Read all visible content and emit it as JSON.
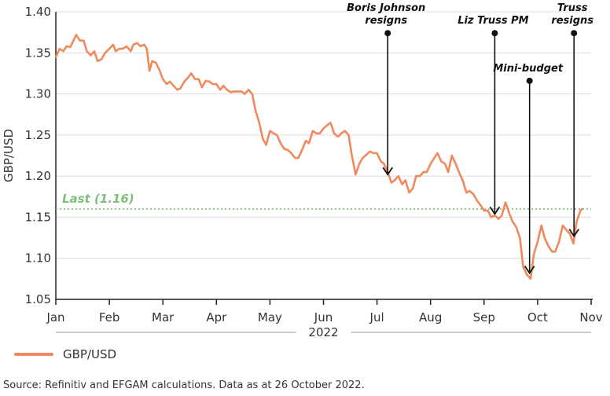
{
  "chart_data": {
    "type": "line",
    "ylabel": "GBP/USD",
    "xlabel": "2022",
    "ylim": [
      1.05,
      1.4
    ],
    "yticks": [
      "1.40",
      "1.35",
      "1.30",
      "1.25",
      "1.20",
      "1.15",
      "1.10",
      "1.05"
    ],
    "ytick_values": [
      1.4,
      1.35,
      1.3,
      1.25,
      1.2,
      1.15,
      1.1,
      1.05
    ],
    "months": [
      "Jan",
      "Feb",
      "Mar",
      "Apr",
      "May",
      "Jun",
      "Jul",
      "Aug",
      "Sep",
      "Oct",
      "Nov"
    ],
    "year_label": "2022",
    "series": [
      {
        "name": "GBP/USD",
        "color": "#f08a5d",
        "points": [
          [
            0.0,
            1.345
          ],
          [
            0.07,
            1.355
          ],
          [
            0.14,
            1.352
          ],
          [
            0.2,
            1.358
          ],
          [
            0.27,
            1.357
          ],
          [
            0.33,
            1.365
          ],
          [
            0.38,
            1.372
          ],
          [
            0.45,
            1.365
          ],
          [
            0.52,
            1.365
          ],
          [
            0.58,
            1.352
          ],
          [
            0.65,
            1.347
          ],
          [
            0.72,
            1.352
          ],
          [
            0.78,
            1.34
          ],
          [
            0.85,
            1.342
          ],
          [
            0.92,
            1.35
          ],
          [
            1.0,
            1.355
          ],
          [
            1.07,
            1.36
          ],
          [
            1.12,
            1.352
          ],
          [
            1.18,
            1.355
          ],
          [
            1.25,
            1.355
          ],
          [
            1.32,
            1.358
          ],
          [
            1.4,
            1.352
          ],
          [
            1.45,
            1.36
          ],
          [
            1.52,
            1.362
          ],
          [
            1.58,
            1.358
          ],
          [
            1.65,
            1.36
          ],
          [
            1.7,
            1.355
          ],
          [
            1.75,
            1.328
          ],
          [
            1.8,
            1.34
          ],
          [
            1.87,
            1.338
          ],
          [
            1.93,
            1.33
          ],
          [
            2.0,
            1.318
          ],
          [
            2.07,
            1.312
          ],
          [
            2.13,
            1.315
          ],
          [
            2.2,
            1.31
          ],
          [
            2.27,
            1.305
          ],
          [
            2.33,
            1.307
          ],
          [
            2.4,
            1.315
          ],
          [
            2.47,
            1.32
          ],
          [
            2.53,
            1.325
          ],
          [
            2.6,
            1.318
          ],
          [
            2.67,
            1.318
          ],
          [
            2.73,
            1.308
          ],
          [
            2.8,
            1.316
          ],
          [
            2.87,
            1.315
          ],
          [
            2.93,
            1.312
          ],
          [
            3.0,
            1.312
          ],
          [
            3.07,
            1.305
          ],
          [
            3.13,
            1.31
          ],
          [
            3.2,
            1.305
          ],
          [
            3.27,
            1.302
          ],
          [
            3.33,
            1.303
          ],
          [
            3.4,
            1.303
          ],
          [
            3.47,
            1.303
          ],
          [
            3.53,
            1.3
          ],
          [
            3.6,
            1.305
          ],
          [
            3.67,
            1.3
          ],
          [
            3.73,
            1.28
          ],
          [
            3.8,
            1.265
          ],
          [
            3.87,
            1.245
          ],
          [
            3.93,
            1.238
          ],
          [
            4.0,
            1.255
          ],
          [
            4.07,
            1.252
          ],
          [
            4.13,
            1.25
          ],
          [
            4.2,
            1.24
          ],
          [
            4.27,
            1.233
          ],
          [
            4.33,
            1.232
          ],
          [
            4.4,
            1.228
          ],
          [
            4.47,
            1.222
          ],
          [
            4.53,
            1.222
          ],
          [
            4.6,
            1.232
          ],
          [
            4.67,
            1.243
          ],
          [
            4.73,
            1.24
          ],
          [
            4.8,
            1.255
          ],
          [
            4.87,
            1.252
          ],
          [
            4.93,
            1.252
          ],
          [
            5.0,
            1.258
          ],
          [
            5.07,
            1.262
          ],
          [
            5.13,
            1.265
          ],
          [
            5.2,
            1.252
          ],
          [
            5.27,
            1.248
          ],
          [
            5.33,
            1.252
          ],
          [
            5.4,
            1.255
          ],
          [
            5.47,
            1.25
          ],
          [
            5.53,
            1.225
          ],
          [
            5.6,
            1.202
          ],
          [
            5.67,
            1.215
          ],
          [
            5.73,
            1.222
          ],
          [
            5.8,
            1.226
          ],
          [
            5.87,
            1.23
          ],
          [
            5.93,
            1.228
          ],
          [
            6.0,
            1.228
          ],
          [
            6.07,
            1.218
          ],
          [
            6.13,
            1.215
          ],
          [
            6.2,
            1.205
          ],
          [
            6.27,
            1.192
          ],
          [
            6.33,
            1.195
          ],
          [
            6.4,
            1.2
          ],
          [
            6.47,
            1.19
          ],
          [
            6.53,
            1.195
          ],
          [
            6.6,
            1.18
          ],
          [
            6.67,
            1.185
          ],
          [
            6.73,
            1.2
          ],
          [
            6.8,
            1.2
          ],
          [
            6.87,
            1.205
          ],
          [
            6.93,
            1.205
          ],
          [
            7.0,
            1.215
          ],
          [
            7.07,
            1.222
          ],
          [
            7.13,
            1.228
          ],
          [
            7.2,
            1.218
          ],
          [
            7.27,
            1.215
          ],
          [
            7.33,
            1.205
          ],
          [
            7.4,
            1.225
          ],
          [
            7.47,
            1.215
          ],
          [
            7.53,
            1.205
          ],
          [
            7.6,
            1.195
          ],
          [
            7.67,
            1.18
          ],
          [
            7.73,
            1.182
          ],
          [
            7.8,
            1.178
          ],
          [
            7.87,
            1.17
          ],
          [
            7.93,
            1.165
          ],
          [
            8.0,
            1.158
          ],
          [
            8.07,
            1.158
          ],
          [
            8.13,
            1.15
          ],
          [
            8.2,
            1.152
          ],
          [
            8.27,
            1.148
          ],
          [
            8.33,
            1.152
          ],
          [
            8.4,
            1.168
          ],
          [
            8.47,
            1.155
          ],
          [
            8.53,
            1.145
          ],
          [
            8.6,
            1.138
          ],
          [
            8.67,
            1.125
          ],
          [
            8.73,
            1.09
          ],
          [
            8.8,
            1.08
          ],
          [
            8.87,
            1.075
          ],
          [
            8.93,
            1.105
          ],
          [
            9.0,
            1.12
          ],
          [
            9.07,
            1.14
          ],
          [
            9.13,
            1.125
          ],
          [
            9.2,
            1.115
          ],
          [
            9.27,
            1.108
          ],
          [
            9.33,
            1.108
          ],
          [
            9.4,
            1.12
          ],
          [
            9.47,
            1.14
          ],
          [
            9.53,
            1.135
          ],
          [
            9.6,
            1.13
          ],
          [
            9.67,
            1.118
          ],
          [
            9.73,
            1.145
          ],
          [
            9.8,
            1.158
          ],
          [
            9.83,
            1.16
          ]
        ]
      }
    ],
    "reference_line": {
      "value": 1.16,
      "label": "Last (1.16)",
      "color": "#7fbf7a"
    },
    "annotations": [
      {
        "text_lines": [
          "Boris Johnson",
          "resigns"
        ],
        "x": 6.2,
        "y_top": 1.374,
        "y_end": 1.2
      },
      {
        "text_lines": [
          "Liz Truss PM"
        ],
        "x": 8.2,
        "y_top": 1.374,
        "y_end": 1.152
      },
      {
        "text_lines": [
          "Mini-budget"
        ],
        "x": 8.85,
        "y_top": 1.316,
        "y_end": 1.08
      },
      {
        "text_lines": [
          "Truss",
          "resigns"
        ],
        "x": 9.68,
        "y_top": 1.374,
        "y_end": 1.125
      }
    ]
  },
  "legend": {
    "label": "GBP/USD",
    "color": "#f08a5d"
  },
  "source": "Source: Refinitiv and EFGAM calculations. Data as at 26 October 2022."
}
